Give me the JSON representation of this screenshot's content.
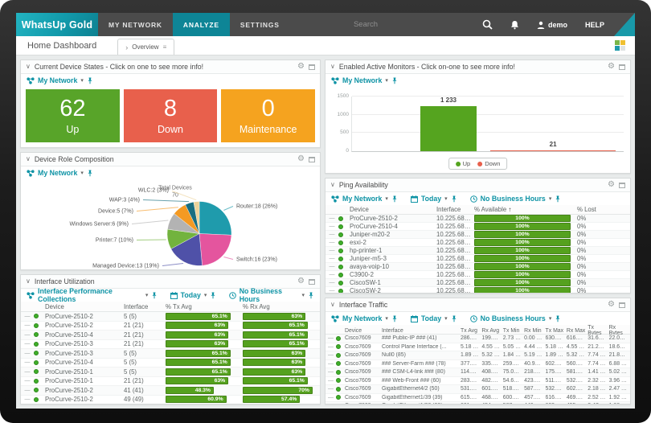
{
  "topbar": {
    "logo": "WhatsUp Gold",
    "nav": [
      {
        "label": "MY NETWORK"
      },
      {
        "label": "ANALYZE"
      },
      {
        "label": "SETTINGS"
      }
    ],
    "search_placeholder": "Search",
    "user": "demo",
    "help": "HELP"
  },
  "subheader": {
    "title": "Home Dashboard",
    "tab": "Overview"
  },
  "toolbar_labels": {
    "date": "Today",
    "hours": "No Business Hours"
  },
  "panels": {
    "device_states": {
      "title": "Current Device States - Click on one to see more info!",
      "scope": "My Network",
      "tiles": [
        {
          "value": "62",
          "label": "Up",
          "color": "#58a429"
        },
        {
          "value": "8",
          "label": "Down",
          "color": "#e8604c"
        },
        {
          "value": "0",
          "label": "Maintenance",
          "color": "#f5a31f"
        }
      ]
    },
    "device_role": {
      "title": "Device Role Composition",
      "scope": "My Network",
      "chart_title": "Total Devices",
      "chart_total": "70"
    },
    "interface_utilization": {
      "title": "Interface Utilization",
      "scope": "Interface Performance Collections",
      "columns": [
        "Device",
        "Interface",
        "% Tx Avg",
        "% Rx Avg"
      ],
      "rows": [
        {
          "device": "ProCurve-2510-2",
          "iface": "5 (5)",
          "tx": "65.1%",
          "rx": "63%"
        },
        {
          "device": "ProCurve-2510-2",
          "iface": "21 (21)",
          "tx": "63%",
          "rx": "65.1%"
        },
        {
          "device": "ProCurve-2510-4",
          "iface": "21 (21)",
          "tx": "63%",
          "rx": "65.1%"
        },
        {
          "device": "ProCurve-2510-3",
          "iface": "21 (21)",
          "tx": "63%",
          "rx": "65.1%"
        },
        {
          "device": "ProCurve-2510-3",
          "iface": "5 (5)",
          "tx": "65.1%",
          "rx": "63%"
        },
        {
          "device": "ProCurve-2510-4",
          "iface": "5 (5)",
          "tx": "65.1%",
          "rx": "63%"
        },
        {
          "device": "ProCurve-2510-1",
          "iface": "5 (5)",
          "tx": "65.1%",
          "rx": "63%"
        },
        {
          "device": "ProCurve-2510-1",
          "iface": "21 (21)",
          "tx": "63%",
          "rx": "65.1%"
        },
        {
          "device": "ProCurve-2510-2",
          "iface": "41 (41)",
          "tx": "48.3%",
          "rx": "70%"
        },
        {
          "device": "ProCurve-2510-2",
          "iface": "49 (49)",
          "tx": "60.9%",
          "rx": "57.4%"
        }
      ]
    },
    "active_monitors": {
      "title": "Enabled Active Monitors - Click on-one to see more info!",
      "scope": "My Network"
    },
    "ping_availability": {
      "title": "Ping Availability",
      "scope": "My Network",
      "columns": [
        "Device",
        "Interface",
        "% Available",
        "% Lost"
      ],
      "rows": [
        {
          "device": "ProCurve-2510-2",
          "iface": "10.225.68.29",
          "avail": "100%",
          "lost": "0%"
        },
        {
          "device": "ProCurve-2510-4",
          "iface": "10.225.68.57",
          "avail": "100%",
          "lost": "0%"
        },
        {
          "device": "Juniper-m20-2",
          "iface": "10.225.68.20",
          "avail": "100%",
          "lost": "0%"
        },
        {
          "device": "esxi-2",
          "iface": "10.225.68.48",
          "avail": "100%",
          "lost": "0%"
        },
        {
          "device": "hp-printer-1",
          "iface": "10.225.68.26",
          "avail": "100%",
          "lost": "0%"
        },
        {
          "device": "Juniper-m5-3",
          "iface": "10.225.68.39",
          "avail": "100%",
          "lost": "0%"
        },
        {
          "device": "avaya-voip-10",
          "iface": "10.225.68.41",
          "avail": "100%",
          "lost": "0%"
        },
        {
          "device": "C3900-2",
          "iface": "10.225.68.17",
          "avail": "100%",
          "lost": "0%"
        },
        {
          "device": "CiscoSW-1",
          "iface": "10.225.68.12",
          "avail": "100%",
          "lost": "0%"
        },
        {
          "device": "CiscoSW-2",
          "iface": "10.225.68.28",
          "avail": "100%",
          "lost": "0%"
        }
      ]
    },
    "interface_traffic": {
      "title": "Interface Traffic",
      "scope": "My Network",
      "columns": [
        "Device",
        "Interface",
        "Tx Avg",
        "Rx Avg",
        "Tx Min",
        "Rx Min",
        "Tx Max",
        "Rx Max",
        "Tx Bytes",
        "Rx Bytes"
      ],
      "rows": [
        {
          "device": "Cisco7609",
          "iface": "### Public-IP ### (41)",
          "tx_avg": "286.36 Mb...",
          "rx_avg": "199.44 Mb...",
          "tx_min": "2.73 Mbps",
          "rx_min": "0.00 bps",
          "tx_max": "630.02 Mb...",
          "rx_max": "616.02 Mb...",
          "tx_bytes": "31.69 TB",
          "rx_bytes": "22.07 TB"
        },
        {
          "device": "Cisco7609",
          "iface": "Control Plane Interface (...",
          "tx_avg": "5.18 Gbps",
          "rx_avg": "4.55 Gbps",
          "tx_min": "5.05 Gbps",
          "rx_min": "4.44 Gbps",
          "tx_max": "5.18 Gbps",
          "rx_max": "4.55 Gbps",
          "tx_bytes": "21.23 TB",
          "rx_bytes": "18.64 TB"
        },
        {
          "device": "Cisco7609",
          "iface": "Null0 (85)",
          "tx_avg": "1.89 Gbps",
          "rx_avg": "5.32 Gbps",
          "tx_min": "1.84 Gbps",
          "rx_min": "5.19 Gbps",
          "tx_max": "1.89 Gbps",
          "rx_max": "5.32 Gbps",
          "tx_bytes": "7.74 TB",
          "rx_bytes": "21.80 TB"
        },
        {
          "device": "Cisco7609",
          "iface": "### Server-Farm ### (78)",
          "tx_avg": "377.85 Mb...",
          "rx_avg": "335.06 Mb...",
          "tx_min": "259.42 Mb...",
          "rx_min": "40.96 Mbps",
          "tx_max": "602.05 Mb...",
          "rx_max": "560.02 Mb...",
          "tx_bytes": "7.74 TB",
          "rx_bytes": "6.88 TB"
        },
        {
          "device": "Cisco7609",
          "iface": "### CSM-L4-link ### (80)",
          "tx_avg": "114.29 Mb...",
          "rx_avg": "408.17 Mb...",
          "tx_min": "75.09 Mbps",
          "rx_min": "218.46 Mb...",
          "tx_max": "175.01 Mb...",
          "rx_max": "581.02 Mb...",
          "tx_bytes": "1.41 TB",
          "rx_bytes": "5.02 TB"
        },
        {
          "device": "Cisco7609",
          "iface": "### Web-Front ### (60)",
          "tx_avg": "283.38 Mb...",
          "rx_avg": "482.80 Mb...",
          "tx_min": "54.61 Mbps",
          "rx_min": "423.26 Mb...",
          "tx_max": "511.02 Mb...",
          "rx_max": "532.02 Mb...",
          "tx_bytes": "2.32 TB",
          "rx_bytes": "3.96 TB"
        },
        {
          "device": "Cisco7609",
          "iface": "GigabitEthernet4/2 (50)",
          "tx_avg": "531.78 Mb...",
          "rx_avg": "601.75 Mb...",
          "tx_min": "518.84 Mb...",
          "rx_min": "587.11 Mb...",
          "tx_max": "532.02 Mb...",
          "rx_max": "602.02 Mb...",
          "tx_bytes": "2.18 TB",
          "rx_bytes": "2.47 TB"
        },
        {
          "device": "Cisco7609",
          "iface": "GigabitEthernet1/39 (39)",
          "tx_avg": "615.75 Mb...",
          "rx_avg": "468.81 Mb...",
          "tx_min": "600.75 Mb...",
          "rx_min": "457.39 Mb...",
          "tx_max": "616.02 Mb...",
          "rx_max": "469.02 Mb...",
          "tx_bytes": "2.52 TB",
          "rx_bytes": "1.92 TB"
        },
        {
          "device": "Cisco7609",
          "iface": "GigabitEthernet1/33 (33)",
          "tx_avg": "601.75 Mb...",
          "rx_avg": "454.81 Mb...",
          "tx_min": "587.11 Mb...",
          "rx_min": "443.75 Mb...",
          "tx_max": "602.02 Mb...",
          "rx_max": "455.02 Mb...",
          "tx_bytes": "2.47 TB",
          "rx_bytes": "1.86 TB"
        }
      ]
    }
  },
  "chart_data": [
    {
      "type": "pie",
      "title": "Total Devices",
      "total": 70,
      "labels": [
        "Router",
        "Switch",
        "Managed Device",
        "Printer",
        "Windows Server",
        "Device",
        "WAP",
        "WLC"
      ],
      "values": [
        18,
        16,
        13,
        7,
        6,
        5,
        3,
        2
      ],
      "percents": [
        "26%",
        "23%",
        "19%",
        "10%",
        "9%",
        "7%",
        "4%",
        "3%"
      ],
      "colors": [
        "#1f9bac",
        "#e4559e",
        "#4f51a8",
        "#72b33e",
        "#b3b3b3",
        "#f49a23",
        "#186e80",
        "#ecd39b"
      ]
    },
    {
      "type": "bar",
      "title": "Enabled Active Monitors",
      "categories": [
        "Up",
        "Down"
      ],
      "values": [
        1233,
        21
      ],
      "value_labels": [
        "1 233",
        "21"
      ],
      "colors": [
        "#55a41f",
        "#e8604c"
      ],
      "ylim": [
        0,
        1500
      ],
      "yticks": [
        0,
        500,
        1000,
        1500
      ],
      "legend_position": "bottom"
    }
  ]
}
